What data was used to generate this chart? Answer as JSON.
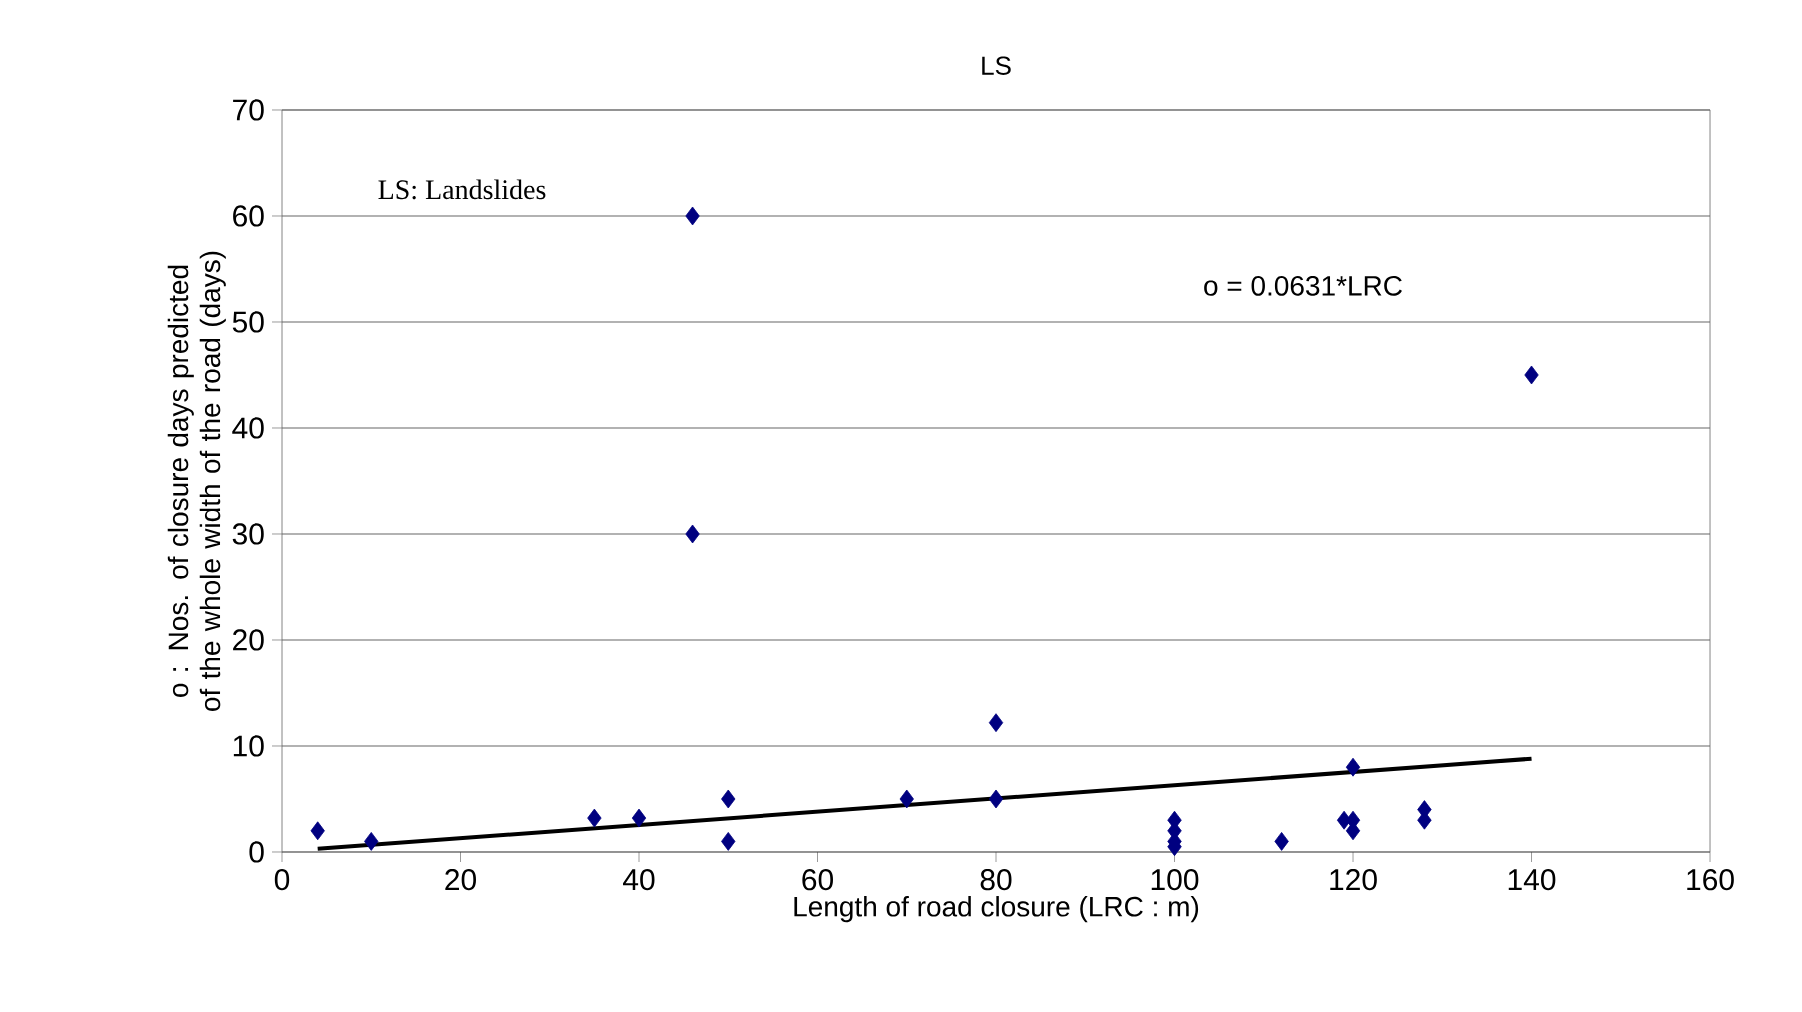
{
  "chart_data": {
    "type": "scatter",
    "title": "LS",
    "xlabel": "Length of road closure (LRC : m)",
    "ylabel": "o : Nos. of closure days predicted of the whole width of the road (days)",
    "annotations": [
      "LS: Landslides",
      "o = 0.0631*LRC"
    ],
    "xlim": [
      0,
      160
    ],
    "ylim": [
      0,
      70
    ],
    "xticks": [
      0,
      20,
      40,
      60,
      80,
      100,
      120,
      140,
      160
    ],
    "yticks": [
      0,
      10,
      20,
      30,
      40,
      50,
      60,
      70
    ],
    "grid": "y",
    "series": [
      {
        "marker": "diamond",
        "color": "#000080",
        "x": [
          4,
          10,
          35,
          40,
          46,
          46,
          50,
          50,
          70,
          80,
          80,
          100,
          100,
          100,
          100,
          112,
          119,
          120,
          120,
          120,
          128,
          128,
          140
        ],
        "values": [
          2,
          1,
          3.2,
          3.2,
          60,
          30,
          5,
          1,
          5,
          12.2,
          5,
          3,
          2,
          1,
          0.5,
          1,
          3,
          8,
          3,
          2,
          4,
          3,
          45
        ]
      },
      {
        "type": "line",
        "marker": "none",
        "line_style": "solid",
        "color": "#000000",
        "x": [
          4,
          140
        ],
        "values": [
          0.3,
          8.8
        ]
      }
    ]
  }
}
